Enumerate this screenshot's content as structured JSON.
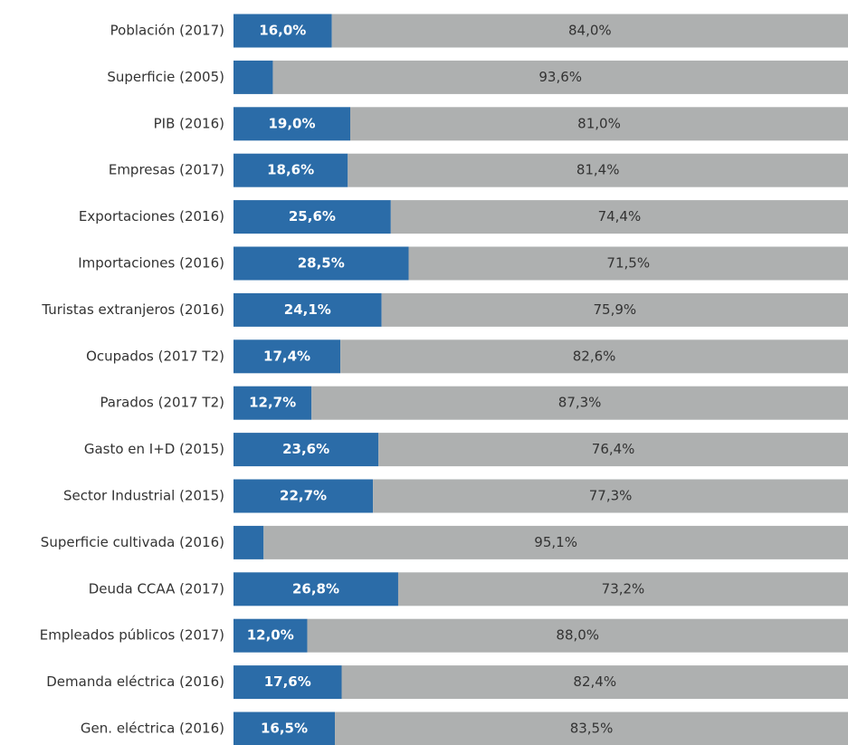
{
  "chart_data": {
    "type": "stacked-bar-horizontal",
    "categories": [
      "Población (2017)",
      "Superficie (2005)",
      "PIB (2016)",
      "Empresas (2017)",
      "Exportaciones (2016)",
      "Importaciones (2016)",
      "Turistas extranjeros (2016)",
      "Ocupados (2017 T2)",
      "Parados (2017 T2)",
      "Gasto en I+D (2015)",
      "Sector Industrial (2015)",
      "Superficie cultivada (2016)",
      "Deuda CCAA (2017)",
      "Empleados públicos (2017)",
      "Demanda eléctrica (2016)",
      "Gen. eléctrica (2016)"
    ],
    "xlim": [
      0,
      100
    ],
    "series": [
      {
        "color": "#2b6ca8",
        "values": [
          16.0,
          6.4,
          19.0,
          18.6,
          25.6,
          28.5,
          24.1,
          17.4,
          12.7,
          23.6,
          22.7,
          4.9,
          26.8,
          12.0,
          17.6,
          16.5
        ],
        "value_labels": [
          "16,0%",
          null,
          "19,0%",
          "18,6%",
          "25,6%",
          "28,5%",
          "24,1%",
          "17,4%",
          "12,7%",
          "23,6%",
          "22,7%",
          null,
          "26,8%",
          "12,0%",
          "17,6%",
          "16,5%"
        ]
      },
      {
        "color": "#aeb0b0",
        "values": [
          84.0,
          93.6,
          81.0,
          81.4,
          74.4,
          71.5,
          75.9,
          82.6,
          87.3,
          76.4,
          77.3,
          95.1,
          73.2,
          88.0,
          82.4,
          83.5
        ],
        "value_labels": [
          "84,0%",
          "93,6%",
          "81,0%",
          "81,4%",
          "74,4%",
          "71,5%",
          "75,9%",
          "82,6%",
          "87,3%",
          "76,4%",
          "77,3%",
          "95,1%",
          "73,2%",
          "88,0%",
          "82,4%",
          "83,5%"
        ]
      }
    ]
  }
}
